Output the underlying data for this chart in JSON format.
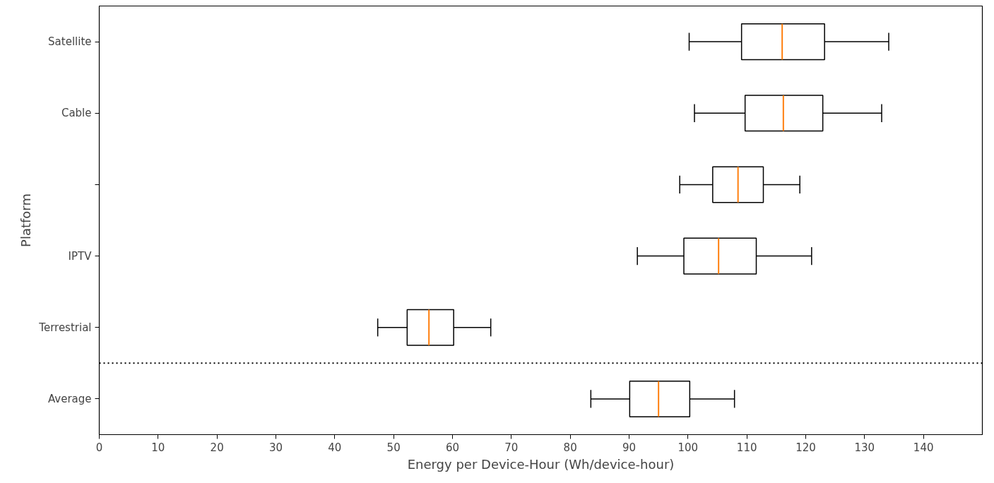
{
  "chart_data": {
    "type": "box",
    "orientation": "horizontal",
    "xlabel": "Energy per Device-Hour (Wh/device-hour)",
    "ylabel": "Platform",
    "categories": [
      "Satellite",
      "Cable",
      null,
      "IPTV",
      "Terrestrial",
      "Average"
    ],
    "series": [
      {
        "color": "#000000",
        "boxes": [
          {
            "low": 100.2,
            "q1": 109.1,
            "median": 116.0,
            "q3": 123.2,
            "high": 134.1
          },
          {
            "low": 101.1,
            "q1": 109.7,
            "median": 116.2,
            "q3": 122.9,
            "high": 132.9
          },
          {
            "low": 98.6,
            "q1": 104.2,
            "median": 108.5,
            "q3": 112.8,
            "high": 119.0
          },
          {
            "low": 91.4,
            "q1": 99.3,
            "median": 105.2,
            "q3": 111.6,
            "high": 121.0
          },
          {
            "low": 47.3,
            "q1": 52.3,
            "median": 56.0,
            "q3": 60.2,
            "high": 66.5
          },
          {
            "low": 83.5,
            "q1": 90.1,
            "median": 95.0,
            "q3": 100.3,
            "high": 107.9
          }
        ]
      }
    ],
    "xlim": [
      0,
      150
    ],
    "xticks": [
      0,
      10,
      20,
      30,
      40,
      50,
      60,
      70,
      80,
      90,
      100,
      110,
      120,
      130,
      140
    ],
    "grid": false
  }
}
